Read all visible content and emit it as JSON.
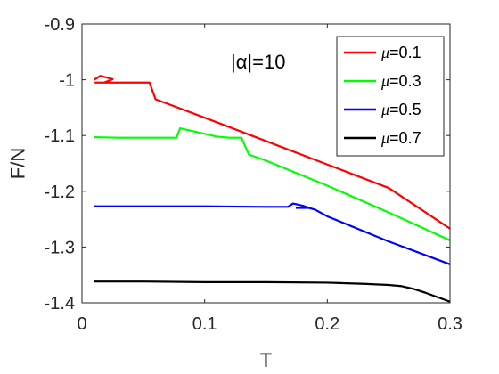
{
  "chart_data": {
    "type": "line",
    "title": "",
    "xlabel": "T",
    "ylabel": "F/N",
    "xlim": [
      0,
      0.3
    ],
    "ylim": [
      -1.4,
      -0.9
    ],
    "xticks": [
      0,
      0.1,
      0.2,
      0.3
    ],
    "xtick_labels": [
      "0",
      "0.1",
      "0.2",
      "0.3"
    ],
    "yticks": [
      -1.4,
      -1.3,
      -1.2,
      -1.1,
      -1.0,
      -0.9
    ],
    "ytick_labels": [
      "-1.4",
      "-1.3",
      "-1.2",
      "-1.1",
      "-1",
      "-0.9"
    ],
    "grid": false,
    "legend_position": "top-right",
    "annotation": "|α|=10",
    "series": [
      {
        "name": "μ=0.1",
        "legend_symbol": "μ",
        "legend_value": "=0.1",
        "color": "#ff0000",
        "x": [
          0.01,
          0.015,
          0.02,
          0.025,
          0.018,
          0.011,
          0.02,
          0.03,
          0.04,
          0.05,
          0.055,
          0.06,
          0.1,
          0.15,
          0.2,
          0.25,
          0.3
        ],
        "y": [
          -1.0,
          -0.993,
          -0.996,
          -0.999,
          -1.005,
          -1.005,
          -1.005,
          -1.005,
          -1.005,
          -1.005,
          -1.005,
          -1.035,
          -1.068,
          -1.11,
          -1.152,
          -1.194,
          -1.267
        ]
      },
      {
        "name": "μ=0.3",
        "legend_symbol": "μ",
        "legend_value": "=0.3",
        "color": "#00ff00",
        "x": [
          0.01,
          0.03,
          0.05,
          0.07,
          0.077,
          0.08,
          0.09,
          0.1,
          0.11,
          0.12,
          0.13,
          0.136,
          0.15,
          0.2,
          0.25,
          0.3
        ],
        "y": [
          -1.103,
          -1.104,
          -1.104,
          -1.104,
          -1.104,
          -1.087,
          -1.092,
          -1.097,
          -1.102,
          -1.104,
          -1.104,
          -1.134,
          -1.145,
          -1.19,
          -1.238,
          -1.288
        ]
      },
      {
        "name": "μ=0.5",
        "legend_symbol": "μ",
        "legend_value": "=0.5",
        "color": "#0000ff",
        "x": [
          0.01,
          0.05,
          0.1,
          0.15,
          0.168,
          0.172,
          0.18,
          0.185,
          0.175,
          0.185,
          0.19,
          0.2,
          0.25,
          0.3
        ],
        "y": [
          -1.227,
          -1.227,
          -1.227,
          -1.228,
          -1.228,
          -1.222,
          -1.226,
          -1.23,
          -1.23,
          -1.23,
          -1.233,
          -1.245,
          -1.29,
          -1.331
        ]
      },
      {
        "name": "μ=0.7",
        "legend_symbol": "μ",
        "legend_value": "=0.7",
        "color": "#000000",
        "x": [
          0.01,
          0.05,
          0.1,
          0.15,
          0.2,
          0.23,
          0.25,
          0.26,
          0.27,
          0.28,
          0.29,
          0.3
        ],
        "y": [
          -1.362,
          -1.362,
          -1.363,
          -1.363,
          -1.364,
          -1.366,
          -1.368,
          -1.37,
          -1.375,
          -1.382,
          -1.39,
          -1.398
        ]
      }
    ]
  }
}
